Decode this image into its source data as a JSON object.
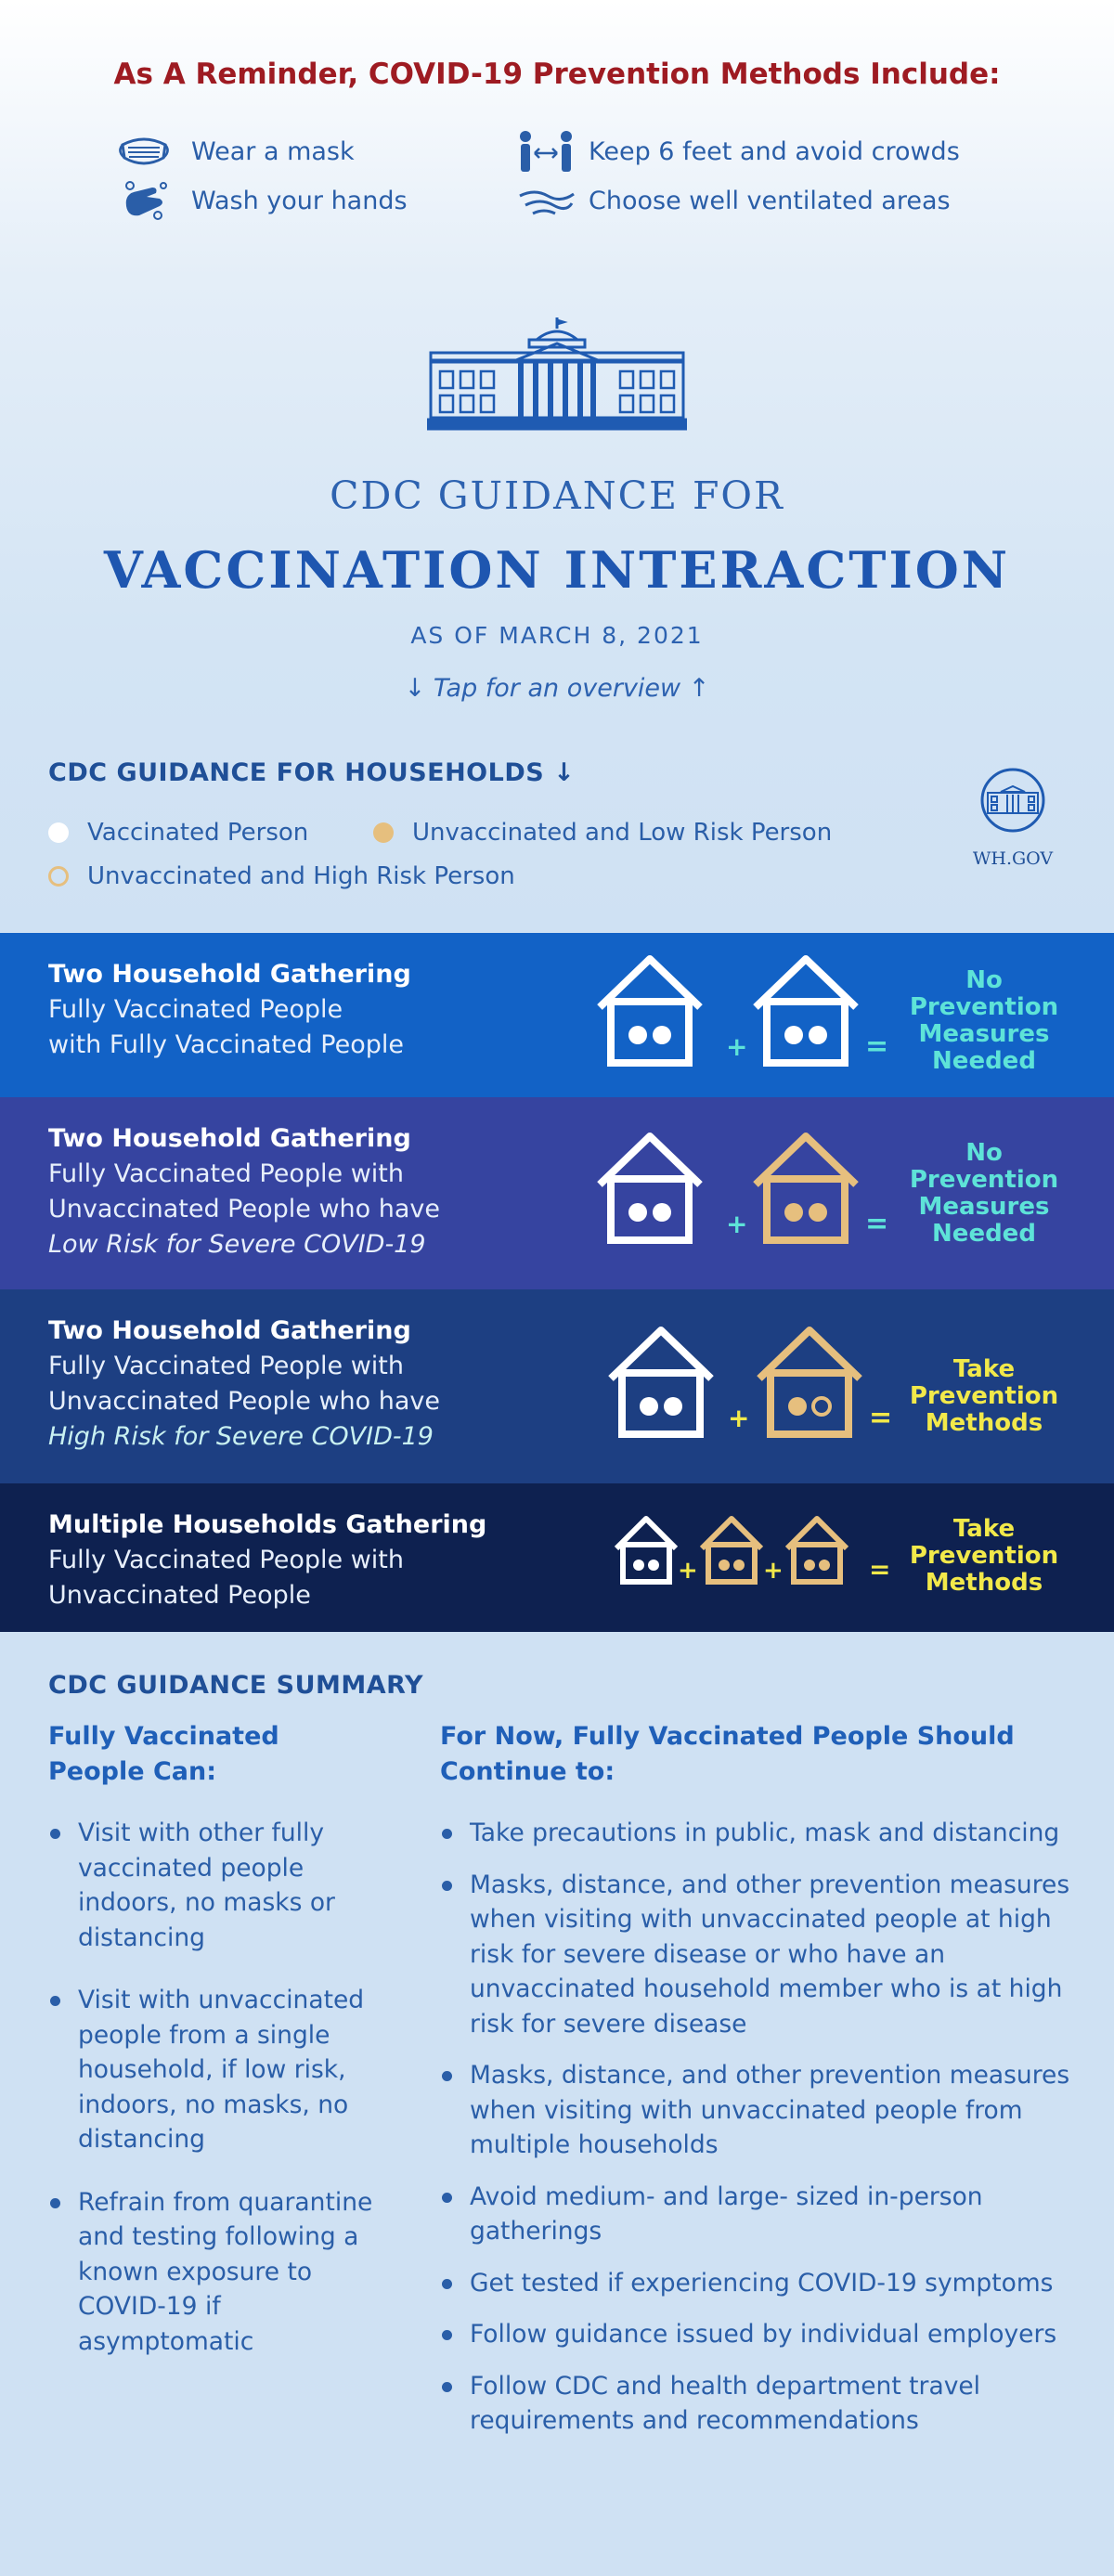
{
  "reminder": {
    "title": "As A Reminder, COVID-19 Prevention Methods Include:",
    "items": [
      {
        "icon": "mask-icon",
        "label": "Wear a mask"
      },
      {
        "icon": "distance-icon",
        "label": "Keep 6 feet and avoid crowds"
      },
      {
        "icon": "handwash-icon",
        "label": "Wash your hands"
      },
      {
        "icon": "ventilation-icon",
        "label": "Choose well ventilated areas"
      }
    ]
  },
  "header": {
    "title_line1": "CDC GUIDANCE FOR",
    "title_line2": "VACCINATION INTERACTION",
    "as_of": "AS OF MARCH 8, 2021",
    "tap": "↓ Tap for an overview ↑"
  },
  "households": {
    "heading": "CDC GUIDANCE FOR HOUSEHOLDS ↓",
    "legend": [
      {
        "label": "Vaccinated Person",
        "color": "#ffffff"
      },
      {
        "label": "Unvaccinated and Low Risk Person",
        "color": "#e6bf7e"
      },
      {
        "label": "Unvaccinated and High Risk Person",
        "color": "#e6bf7e"
      }
    ],
    "badge": "WH.GOV"
  },
  "rows": [
    {
      "title": "Two Household Gathering",
      "line1": "Fully Vaccinated People",
      "line2": "with Fully Vaccinated People",
      "line3": "",
      "result": [
        "No",
        "Prevention",
        "Measures",
        "Needed"
      ],
      "result_color": "#5ee3d8",
      "bg": "#1262c6"
    },
    {
      "title": "Two Household Gathering",
      "line1": "Fully Vaccinated People with",
      "line2": "Unvaccinated People who have",
      "line3": "Low Risk for Severe COVID-19",
      "result": [
        "No",
        "Prevention",
        "Measures",
        "Needed"
      ],
      "result_color": "#5ee3d8",
      "bg": "#3644a0"
    },
    {
      "title": "Two Household Gathering",
      "line1": "Fully Vaccinated People with",
      "line2": "Unvaccinated People who have",
      "line3": "High Risk for Severe COVID-19",
      "result": [
        "Take",
        "Prevention",
        "Methods"
      ],
      "result_color": "#f2e94a",
      "bg": "#1d3f82"
    },
    {
      "title": "Multiple Households Gathering",
      "line1": "Fully Vaccinated People with",
      "line2": "Unvaccinated People",
      "line3": "",
      "result": [
        "Take",
        "Prevention",
        "Methods"
      ],
      "result_color": "#f2e94a",
      "bg": "#0e2150"
    }
  ],
  "summary": {
    "heading": "CDC GUIDANCE SUMMARY",
    "left_heading_1": "Fully Vaccinated",
    "left_heading_2": "People Can:",
    "left_items": [
      "Visit with other fully vaccinated people indoors, no masks or distancing",
      "Visit with unvaccinated people from a single household, if low risk, indoors, no masks, no distancing",
      "Refrain from quarantine and testing following a known exposure to COVID-19 if asymptomatic"
    ],
    "right_heading_1": "For Now, Fully Vaccinated People Should",
    "right_heading_2": "Continue to:",
    "right_items": [
      "Take precautions in public, mask and distancing",
      "Masks, distance, and other prevention measures when visiting with unvaccinated people at high risk for severe  disease or who have an unvaccinated household member who is at high risk for severe disease",
      "Masks, distance, and other prevention measures when visiting with unvaccinated people from multiple households",
      "Avoid medium- and large- sized in-person gatherings",
      "Get tested if experiencing COVID-19 symptoms",
      "Follow guidance issued by individual employers",
      "Follow CDC and health department travel requirements and recommendations"
    ]
  }
}
